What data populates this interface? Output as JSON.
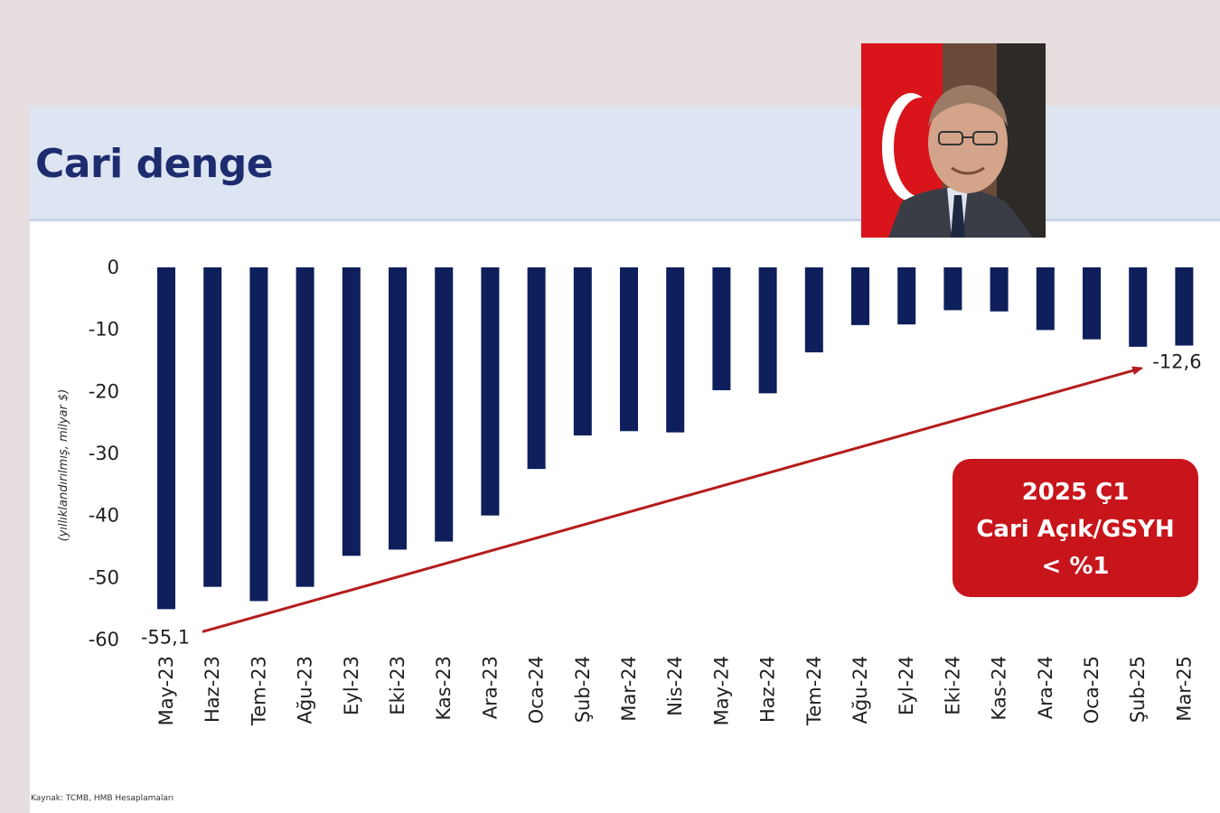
{
  "title": "Cari denge",
  "source": "Kaynak: TCMB, HMB Hesaplamaları",
  "photo": {
    "icon": "portrait-with-flag",
    "flag_color": "#d9141b"
  },
  "colors": {
    "bar": "#0e1f5c",
    "arrow": "#b51c1c",
    "callout_bg": "#c8141b"
  },
  "chart_data": {
    "type": "bar",
    "ylabel": "(yıllıklandırılmış, milyar $)",
    "ylim": [
      -60,
      0
    ],
    "yticks": [
      0,
      -10,
      -20,
      -30,
      -40,
      -50,
      -60
    ],
    "categories": [
      "May-23",
      "Haz-23",
      "Tem-23",
      "Ağu-23",
      "Eyl-23",
      "Eki-23",
      "Kas-23",
      "Ara-23",
      "Oca-24",
      "Şub-24",
      "Mar-24",
      "Nis-24",
      "May-24",
      "Haz-24",
      "Tem-24",
      "Ağu-24",
      "Eyl-24",
      "Eki-24",
      "Kas-24",
      "Ara-24",
      "Oca-25",
      "Şub-25",
      "Mar-25"
    ],
    "values": [
      -55.1,
      -51.5,
      -53.8,
      -51.5,
      -46.5,
      -45.5,
      -44.2,
      -40.0,
      -32.5,
      -27.1,
      -26.4,
      -26.6,
      -19.8,
      -20.3,
      -13.7,
      -9.3,
      -9.2,
      -6.9,
      -7.1,
      -10.1,
      -11.6,
      -12.8,
      -12.6
    ],
    "annotations": [
      {
        "label": "-55,1",
        "category": "May-23",
        "value": -55.1
      },
      {
        "label": "-12,6",
        "category": "Mar-25",
        "value": -12.6
      }
    ],
    "trend_arrow": {
      "from": "May-23",
      "to": "Şub-25"
    },
    "callout": {
      "lines": [
        "2025 Ç1",
        "Cari Açık/GSYH",
        "< %1"
      ]
    },
    "grid": false,
    "legend": "none"
  }
}
